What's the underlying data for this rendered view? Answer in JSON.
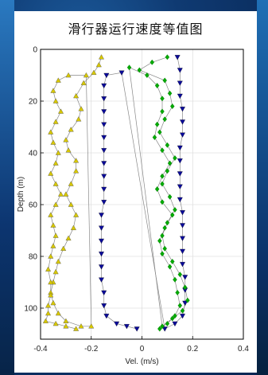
{
  "chart_data": {
    "type": "scatter",
    "title": "滑行器运行速度等值图",
    "xlabel": "Vel. (m/s)",
    "ylabel": "Depth (m)",
    "xlim": [
      -0.4,
      0.4
    ],
    "ylim": [
      0,
      112
    ],
    "y_inverted": true,
    "grid": true,
    "xticks": [
      "-0.4",
      "-0.2",
      "0",
      "0.2",
      "0.4"
    ],
    "yticks": [
      "0",
      "20",
      "40",
      "60",
      "80",
      "100"
    ],
    "series": [
      {
        "marker": "triangle-up",
        "color": "#d8c800",
        "points": [
          [
            -0.16,
            3
          ],
          [
            -0.17,
            6
          ],
          [
            -0.19,
            9
          ],
          [
            -0.23,
            13
          ],
          [
            -0.26,
            18
          ],
          [
            -0.24,
            23
          ],
          [
            -0.25,
            27
          ],
          [
            -0.28,
            31
          ],
          [
            -0.3,
            35
          ],
          [
            -0.29,
            39
          ],
          [
            -0.26,
            43
          ],
          [
            -0.26,
            47
          ],
          [
            -0.28,
            52
          ],
          [
            -0.3,
            56
          ],
          [
            -0.28,
            60
          ],
          [
            -0.26,
            64
          ],
          [
            -0.27,
            69
          ],
          [
            -0.29,
            73
          ],
          [
            -0.31,
            77
          ],
          [
            -0.33,
            82
          ],
          [
            -0.34,
            86
          ],
          [
            -0.35,
            90
          ],
          [
            -0.36,
            94
          ],
          [
            -0.35,
            98
          ],
          [
            -0.33,
            102
          ],
          [
            -0.3,
            105
          ],
          [
            -0.24,
            107
          ],
          [
            -0.2,
            107
          ],
          [
            -0.22,
            10
          ],
          [
            -0.29,
            10
          ],
          [
            -0.33,
            12
          ],
          [
            -0.35,
            16
          ],
          [
            -0.34,
            20
          ],
          [
            -0.32,
            24
          ],
          [
            -0.34,
            28
          ],
          [
            -0.36,
            32
          ],
          [
            -0.35,
            36
          ],
          [
            -0.33,
            40
          ],
          [
            -0.34,
            44
          ],
          [
            -0.36,
            48
          ],
          [
            -0.34,
            52
          ],
          [
            -0.32,
            56
          ],
          [
            -0.34,
            60
          ],
          [
            -0.36,
            64
          ],
          [
            -0.35,
            68
          ],
          [
            -0.34,
            72
          ],
          [
            -0.35,
            76
          ],
          [
            -0.36,
            80
          ],
          [
            -0.37,
            85
          ],
          [
            -0.36,
            90
          ],
          [
            -0.36,
            95
          ],
          [
            -0.37,
            99
          ],
          [
            -0.37,
            102
          ],
          [
            -0.38,
            105
          ],
          [
            -0.34,
            106
          ],
          [
            -0.3,
            107
          ],
          [
            -0.26,
            108
          ]
        ]
      },
      {
        "marker": "triangle-down",
        "color": "#0a0a9a",
        "points": [
          [
            0.14,
            3
          ],
          [
            0.15,
            8
          ],
          [
            0.15,
            13
          ],
          [
            0.15,
            18
          ],
          [
            0.16,
            23
          ],
          [
            0.16,
            28
          ],
          [
            0.16,
            33
          ],
          [
            0.15,
            38
          ],
          [
            0.15,
            43
          ],
          [
            0.15,
            48
          ],
          [
            0.15,
            53
          ],
          [
            0.15,
            58
          ],
          [
            0.16,
            63
          ],
          [
            0.16,
            68
          ],
          [
            0.16,
            73
          ],
          [
            0.16,
            78
          ],
          [
            0.16,
            83
          ],
          [
            0.17,
            88
          ],
          [
            0.17,
            93
          ],
          [
            0.17,
            98
          ],
          [
            0.16,
            103
          ],
          [
            0.13,
            106
          ],
          [
            0.09,
            108
          ],
          [
            -0.08,
            9
          ],
          [
            -0.14,
            10
          ],
          [
            -0.15,
            14
          ],
          [
            -0.15,
            19
          ],
          [
            -0.15,
            24
          ],
          [
            -0.15,
            29
          ],
          [
            -0.15,
            34
          ],
          [
            -0.15,
            39
          ],
          [
            -0.15,
            44
          ],
          [
            -0.15,
            49
          ],
          [
            -0.15,
            54
          ],
          [
            -0.15,
            59
          ],
          [
            -0.16,
            64
          ],
          [
            -0.16,
            69
          ],
          [
            -0.16,
            74
          ],
          [
            -0.16,
            79
          ],
          [
            -0.16,
            84
          ],
          [
            -0.16,
            89
          ],
          [
            -0.15,
            94
          ],
          [
            -0.15,
            99
          ],
          [
            -0.14,
            103
          ],
          [
            -0.1,
            106
          ],
          [
            -0.06,
            107
          ],
          [
            -0.02,
            108
          ]
        ]
      },
      {
        "marker": "diamond",
        "color": "#00aa00",
        "points": [
          [
            0.1,
            3
          ],
          [
            0.04,
            5
          ],
          [
            -0.01,
            8
          ],
          [
            0.09,
            12
          ],
          [
            0.11,
            17
          ],
          [
            0.12,
            22
          ],
          [
            0.09,
            27
          ],
          [
            0.07,
            32
          ],
          [
            0.1,
            37
          ],
          [
            0.13,
            42
          ],
          [
            0.1,
            47
          ],
          [
            0.08,
            52
          ],
          [
            0.11,
            57
          ],
          [
            0.13,
            62
          ],
          [
            0.1,
            67
          ],
          [
            0.08,
            72
          ],
          [
            0.09,
            77
          ],
          [
            0.12,
            82
          ],
          [
            0.15,
            87
          ],
          [
            0.17,
            92
          ],
          [
            0.18,
            97
          ],
          [
            0.16,
            101
          ],
          [
            0.12,
            104
          ],
          [
            0.08,
            107
          ],
          [
            -0.05,
            7
          ],
          [
            0.02,
            10
          ],
          [
            0.06,
            14
          ],
          [
            0.08,
            19
          ],
          [
            0.08,
            24
          ],
          [
            0.06,
            29
          ],
          [
            0.05,
            34
          ],
          [
            0.08,
            39
          ],
          [
            0.11,
            44
          ],
          [
            0.08,
            49
          ],
          [
            0.06,
            54
          ],
          [
            0.08,
            59
          ],
          [
            0.12,
            64
          ],
          [
            0.09,
            69
          ],
          [
            0.07,
            74
          ],
          [
            0.08,
            79
          ],
          [
            0.11,
            84
          ],
          [
            0.13,
            89
          ],
          [
            0.14,
            94
          ],
          [
            0.15,
            99
          ],
          [
            0.13,
            103
          ],
          [
            0.1,
            106
          ],
          [
            0.07,
            108
          ]
        ]
      }
    ]
  }
}
